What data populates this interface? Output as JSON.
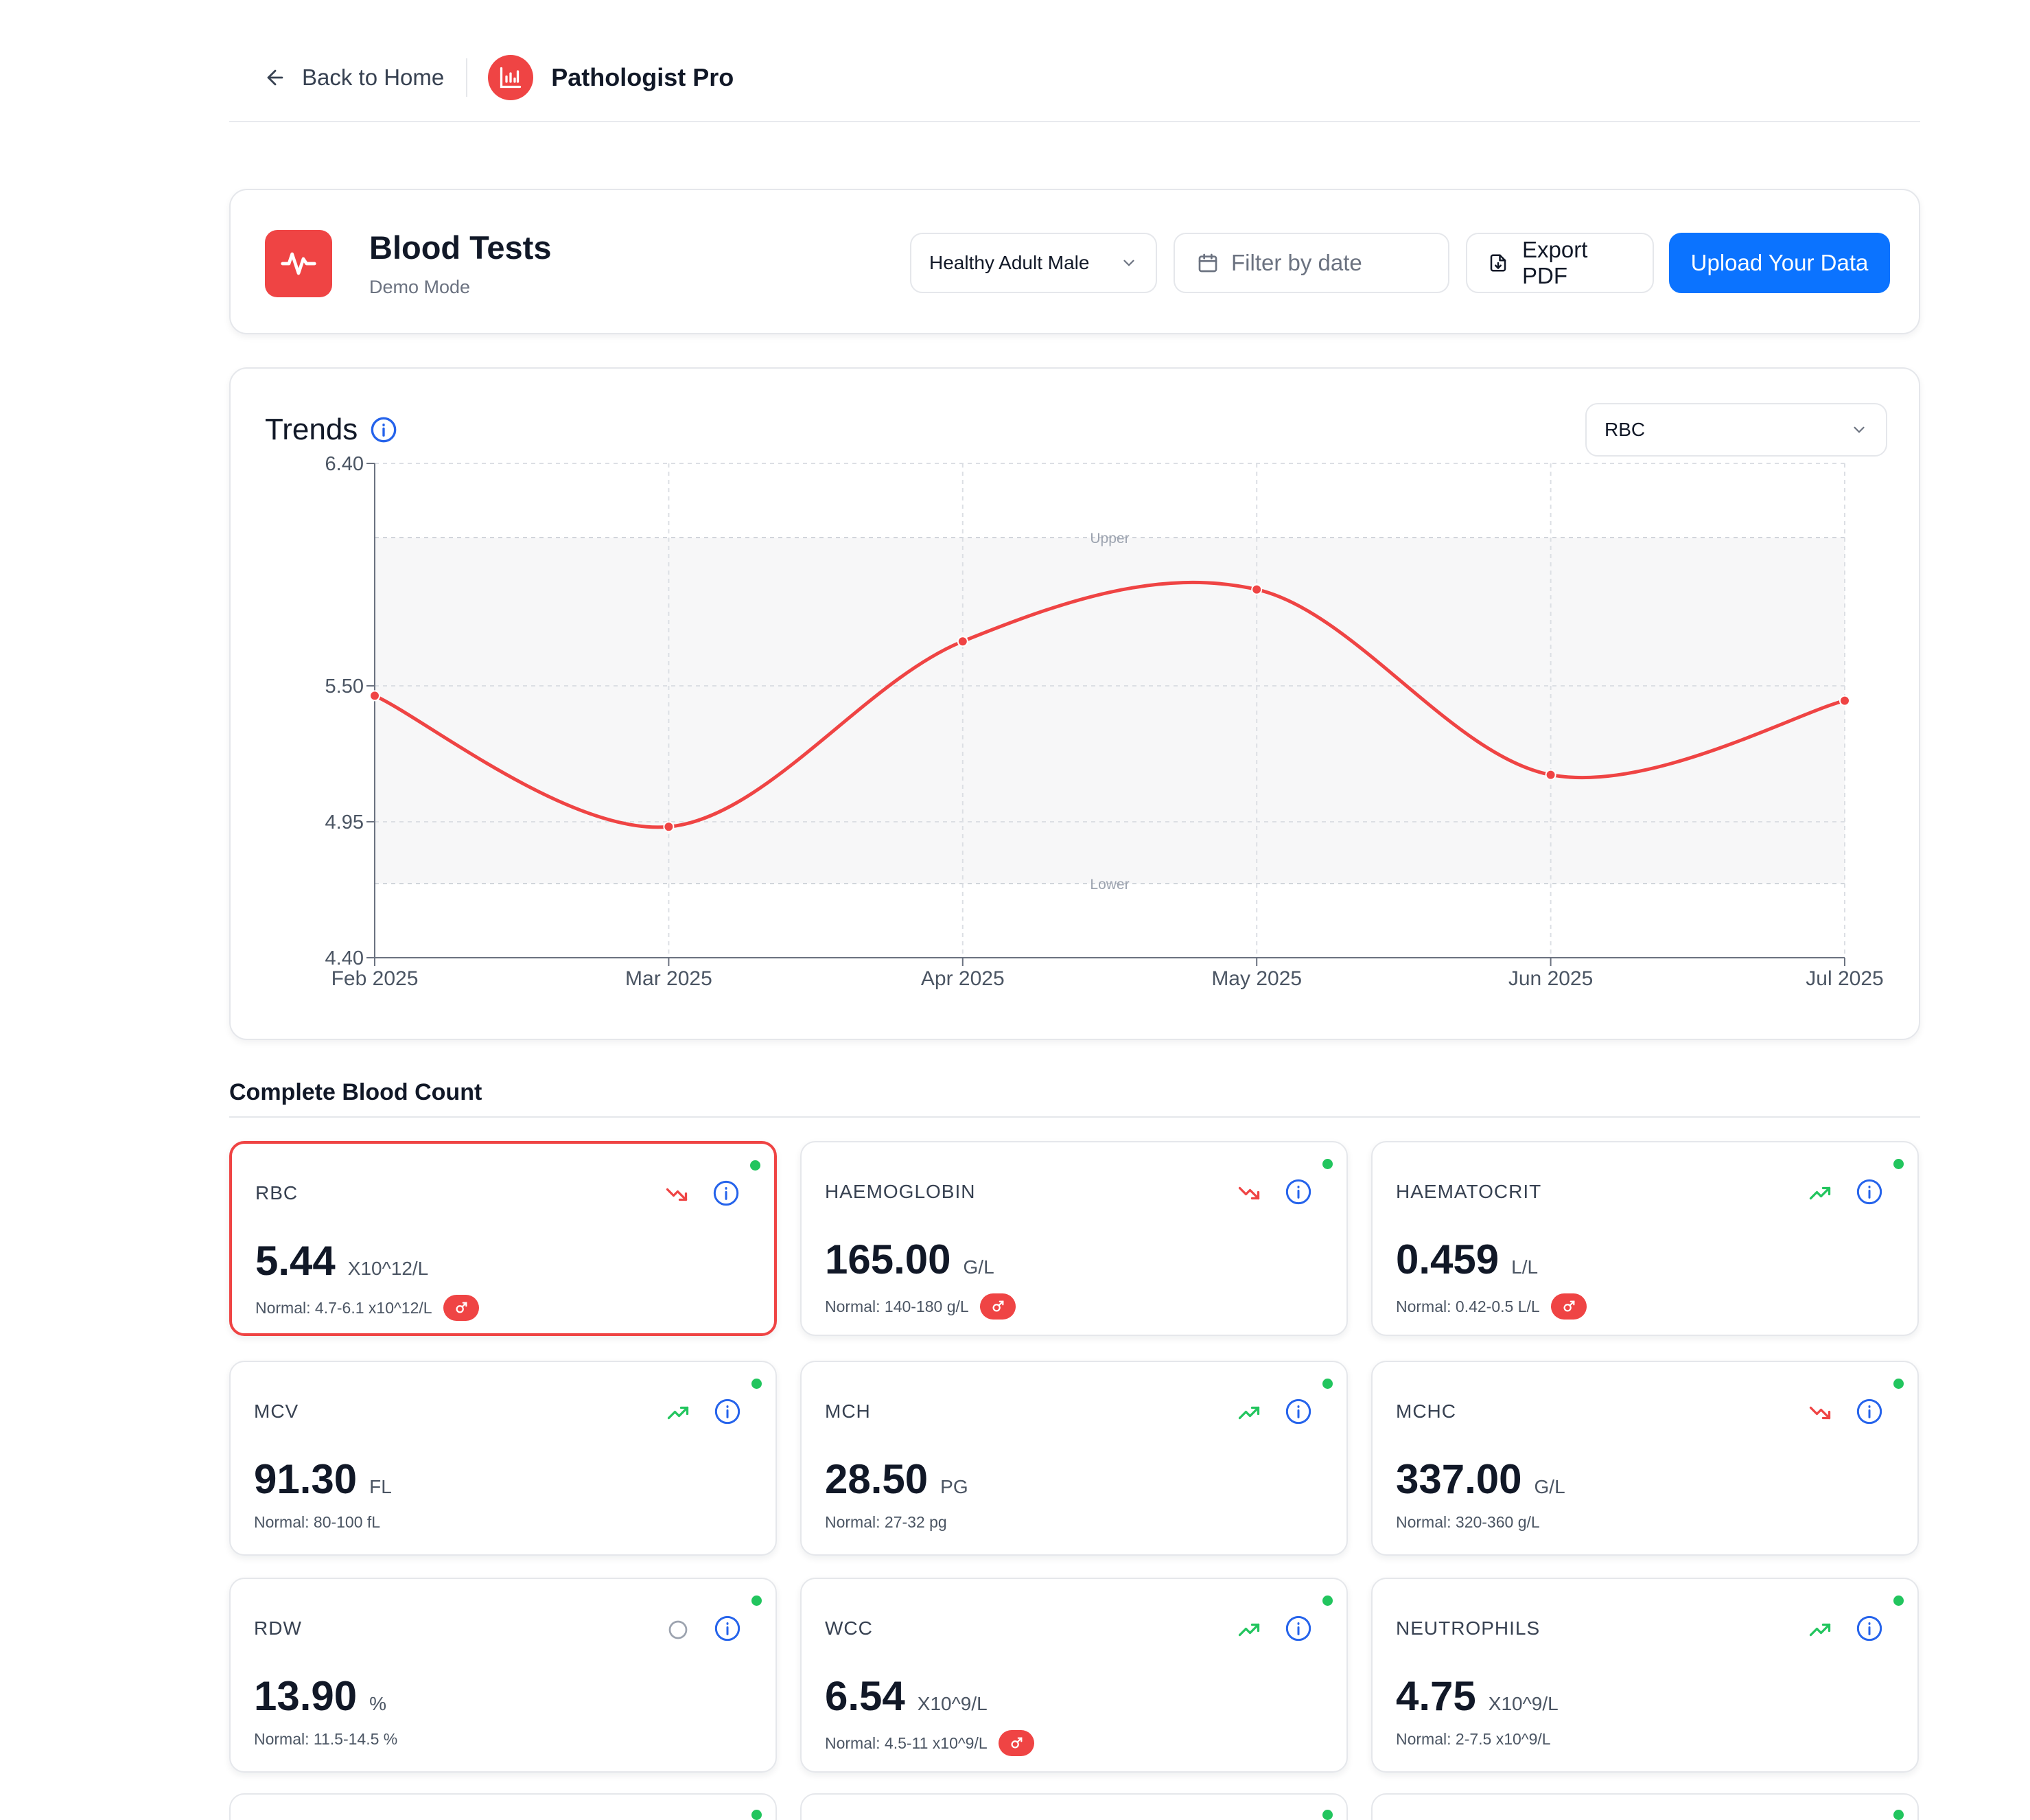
{
  "nav": {
    "back_label": "Back to Home",
    "brand_name": "Pathologist Pro"
  },
  "header": {
    "title": "Blood Tests",
    "subtitle": "Demo Mode",
    "profile_select": "Healthy Adult Male",
    "date_placeholder": "Filter by date",
    "export_label": "Export PDF",
    "upload_label": "Upload Your Data"
  },
  "trends": {
    "title": "Trends",
    "metric_select": "RBC",
    "band_upper_label": "Upper",
    "band_lower_label": "Lower"
  },
  "chart_data": {
    "type": "line",
    "x": [
      "Feb 2025",
      "Mar 2025",
      "Apr 2025",
      "May 2025",
      "Jun 2025",
      "Jul 2025"
    ],
    "series": [
      {
        "values": [
          5.46,
          4.93,
          5.68,
          5.89,
          5.14,
          5.44
        ],
        "color": "#ef4444"
      }
    ],
    "y_ticks": [
      4.4,
      4.95,
      5.5,
      6.4
    ],
    "ylim": [
      4.4,
      6.4
    ],
    "reference_band": [
      4.7,
      6.1
    ],
    "grid": true,
    "curve": "smooth"
  },
  "section": {
    "title": "Complete Blood Count"
  },
  "metrics": [
    {
      "label": "RBC",
      "value": "5.44",
      "unit": "X10^12/L",
      "normal": "Normal: 4.7-6.1 x10^12/L",
      "trend": "down",
      "male": true,
      "selected": true
    },
    {
      "label": "HAEMOGLOBIN",
      "value": "165.00",
      "unit": "G/L",
      "normal": "Normal: 140-180 g/L",
      "trend": "down",
      "male": true
    },
    {
      "label": "HAEMATOCRIT",
      "value": "0.459",
      "unit": "L/L",
      "normal": "Normal: 0.42-0.5 L/L",
      "trend": "up",
      "male": true
    },
    {
      "label": "MCV",
      "value": "91.30",
      "unit": "FL",
      "normal": "Normal: 80-100 fL",
      "trend": "up",
      "male": false
    },
    {
      "label": "MCH",
      "value": "28.50",
      "unit": "PG",
      "normal": "Normal: 27-32 pg",
      "trend": "up",
      "male": false
    },
    {
      "label": "MCHC",
      "value": "337.00",
      "unit": "G/L",
      "normal": "Normal: 320-360 g/L",
      "trend": "down",
      "male": false
    },
    {
      "label": "RDW",
      "value": "13.90",
      "unit": "%",
      "normal": "Normal: 11.5-14.5 %",
      "trend": "stable",
      "male": false
    },
    {
      "label": "WCC",
      "value": "6.54",
      "unit": "X10^9/L",
      "normal": "Normal: 4.5-11 x10^9/L",
      "trend": "up",
      "male": true
    },
    {
      "label": "NEUTROPHILS",
      "value": "4.75",
      "unit": "X10^9/L",
      "normal": "Normal: 2-7.5 x10^9/L",
      "trend": "up",
      "male": false
    }
  ],
  "colors": {
    "accent_red": "#ef4444",
    "primary_blue": "#0b73ff",
    "status_green": "#22c55e",
    "info_blue": "#2563eb"
  },
  "icons": {
    "back": "arrow-left-icon",
    "brand": "bar-chart-icon",
    "header": "heart-pulse-icon",
    "calendar": "calendar-icon",
    "export": "file-download-icon",
    "info": "info-icon",
    "trend_up": "trending-up-icon",
    "trend_down": "trending-down-icon",
    "stable": "circle-icon",
    "male": "male-icon"
  }
}
